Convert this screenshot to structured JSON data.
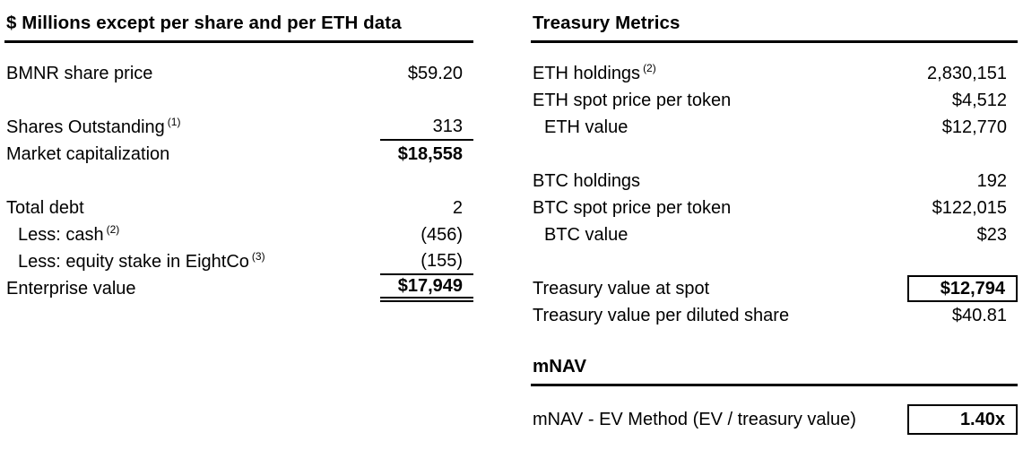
{
  "colors": {
    "background": "#ffffff",
    "text": "#000000",
    "line": "#000000"
  },
  "left_table": {
    "header": "$ Millions except per share and per ETH data",
    "rows": [
      {
        "label": "BMNR share price",
        "value": "$59.20"
      },
      {
        "label": "Shares Outstanding",
        "sup": "(1)",
        "value": "313"
      },
      {
        "label": "Market capitalization",
        "value": "$18,558"
      },
      {
        "label": "Total debt",
        "value": "2"
      },
      {
        "label": "Less: cash",
        "sup": "(2)",
        "value": "(456)"
      },
      {
        "label": "Less: equity stake in EightCo",
        "sup": "(3)",
        "value": "(155)"
      },
      {
        "label": "Enterprise value",
        "value": "$17,949"
      }
    ]
  },
  "right_table": {
    "header": "Treasury Metrics",
    "rows": [
      {
        "label": "ETH holdings",
        "sup": "(2)",
        "value": "2,830,151"
      },
      {
        "label": "ETH spot price per token",
        "value": "$4,512"
      },
      {
        "label": "ETH value",
        "value": "$12,770"
      },
      {
        "label": "BTC holdings",
        "value": "192"
      },
      {
        "label": "BTC spot price per token",
        "value": "$122,015"
      },
      {
        "label": "BTC value",
        "value": "$23"
      },
      {
        "label": "Treasury value at spot",
        "value": "$12,794"
      },
      {
        "label": "Treasury value per diluted share",
        "value": "$40.81"
      }
    ]
  },
  "mnav": {
    "header": "mNAV",
    "row": {
      "label": "mNAV - EV Method (EV / treasury value)",
      "value": "1.40x"
    }
  }
}
